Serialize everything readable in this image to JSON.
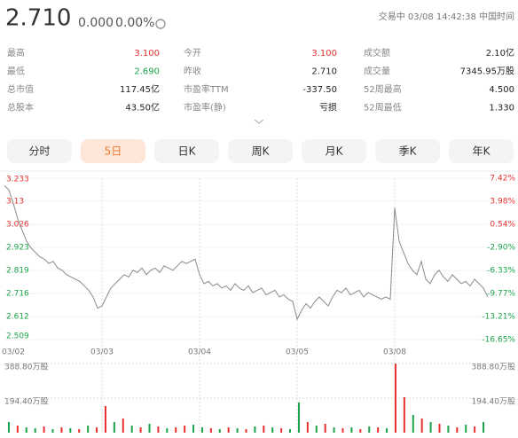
{
  "header": {
    "price": "2.710",
    "change": "0.000",
    "change_pct": "0.00%",
    "status": "交易中 03/08 14:42:38 中国时间"
  },
  "stats": [
    [
      {
        "label": "最高",
        "value": "3.100",
        "color": "#e93030"
      },
      {
        "label": "今开",
        "value": "3.100",
        "color": "#e93030"
      },
      {
        "label": "成交额",
        "value": "2.10亿",
        "color": "#222"
      }
    ],
    [
      {
        "label": "最低",
        "value": "2.690",
        "color": "#1aa34a"
      },
      {
        "label": "昨收",
        "value": "2.710",
        "color": "#222"
      },
      {
        "label": "成交量",
        "value": "7345.95万股",
        "color": "#222"
      }
    ],
    [
      {
        "label": "总市值",
        "value": "117.45亿",
        "color": "#222"
      },
      {
        "label": "市盈率TTM",
        "value": "-337.50",
        "color": "#222"
      },
      {
        "label": "52周最高",
        "value": "4.500",
        "color": "#222"
      }
    ],
    [
      {
        "label": "总股本",
        "value": "43.50亿",
        "color": "#222"
      },
      {
        "label": "市盈率(静)",
        "value": "亏损",
        "color": "#222"
      },
      {
        "label": "52周最低",
        "value": "1.330",
        "color": "#222"
      }
    ]
  ],
  "tabs": [
    "分时",
    "5日",
    "日K",
    "周K",
    "月K",
    "季K",
    "年K"
  ],
  "selected_tab": 1,
  "chart_data": {
    "type": "line",
    "days": [
      "03/02",
      "03/03",
      "03/04",
      "03/05",
      "03/08"
    ],
    "ylim": [
      2.509,
      3.233
    ],
    "yticks": [
      3.233,
      3.13,
      {
        "value": 3.026,
        "label": "3.026"
      },
      2.923,
      2.819,
      2.716,
      2.612,
      2.509
    ],
    "y2lim": [
      -16.65,
      7.42
    ],
    "y2ticks": [
      {
        "value": 7.42,
        "label": "7.42%"
      },
      {
        "value": 3.98,
        "label": "3.98%"
      },
      {
        "value": 0.54,
        "label": "0.54%"
      },
      {
        "value": -2.9,
        "label": "-2.90%"
      },
      {
        "value": -6.33,
        "label": "-6.33%"
      },
      {
        "value": -9.77,
        "label": "-9.77%"
      },
      {
        "value": -13.21,
        "label": "-13.21%"
      },
      {
        "value": -16.65,
        "label": "-16.65%"
      }
    ],
    "up_color": "#e93030",
    "down_color": "#1aa34a",
    "series": [
      {
        "color": "#8a8a8a",
        "values": [
          3.2,
          3.18,
          3.12,
          3.05,
          3.0,
          2.95,
          2.92,
          2.9,
          2.88,
          2.87,
          2.85,
          2.86,
          2.83,
          2.82,
          2.8,
          2.79,
          2.78,
          2.77,
          2.75,
          2.73,
          2.7,
          2.65,
          2.66,
          2.7,
          2.74,
          2.76,
          2.78,
          2.8,
          2.79,
          2.82,
          2.81,
          2.83,
          2.8,
          2.82,
          2.83,
          2.81,
          2.84,
          2.83,
          2.82,
          2.84,
          2.86,
          2.85,
          2.86,
          2.87,
          2.8,
          2.76,
          2.77,
          2.75,
          2.76,
          2.74,
          2.75,
          2.73,
          2.76,
          2.74,
          2.73,
          2.75,
          2.72,
          2.73,
          2.74,
          2.71,
          2.72,
          2.73,
          2.7,
          2.71,
          2.69,
          2.68,
          2.6,
          2.64,
          2.67,
          2.65,
          2.68,
          2.7,
          2.68,
          2.66,
          2.7,
          2.73,
          2.72,
          2.74,
          2.71,
          2.72,
          2.73,
          2.7,
          2.72,
          2.71,
          2.7,
          2.69,
          2.7,
          2.69,
          3.1,
          2.95,
          2.9,
          2.85,
          2.82,
          2.8,
          2.86,
          2.78,
          2.76,
          2.8,
          2.82,
          2.79,
          2.77,
          2.8,
          2.78,
          2.76,
          2.77,
          2.75,
          2.78,
          2.76,
          2.74,
          2.7
        ]
      }
    ],
    "volume": {
      "ylim": [
        0,
        388.8
      ],
      "yticks": [
        {
          "value": 388.8,
          "label": "388.80万股"
        },
        {
          "value": 194.4,
          "label": "194.40万股"
        }
      ],
      "values": [
        60,
        40,
        30,
        25,
        35,
        20,
        30,
        25,
        20,
        40,
        30,
        150,
        60,
        80,
        40,
        30,
        50,
        35,
        25,
        30,
        40,
        45,
        30,
        25,
        20,
        30,
        25,
        20,
        35,
        40,
        30,
        25,
        20,
        170,
        60,
        40,
        50,
        30,
        25,
        30,
        20,
        35,
        30,
        25,
        388,
        200,
        100,
        80,
        60,
        50,
        40,
        30,
        45,
        35,
        60
      ],
      "colors": [
        "#1aa34a",
        "#e93030",
        "#1aa34a",
        "#1aa34a",
        "#e93030",
        "#1aa34a",
        "#e93030",
        "#1aa34a",
        "#e93030",
        "#1aa34a",
        "#e93030",
        "#e93030",
        "#1aa34a",
        "#e93030",
        "#1aa34a",
        "#e93030",
        "#1aa34a",
        "#e93030",
        "#1aa34a",
        "#e93030",
        "#e93030",
        "#1aa34a",
        "#1aa34a",
        "#e93030",
        "#1aa34a",
        "#e93030",
        "#1aa34a",
        "#e93030",
        "#1aa34a",
        "#e93030",
        "#1aa34a",
        "#e93030",
        "#1aa34a",
        "#1aa34a",
        "#e93030",
        "#1aa34a",
        "#e93030",
        "#1aa34a",
        "#e93030",
        "#1aa34a",
        "#e93030",
        "#1aa34a",
        "#e93030",
        "#1aa34a",
        "#e93030",
        "#e93030",
        "#1aa34a",
        "#e93030",
        "#1aa34a",
        "#e93030",
        "#1aa34a",
        "#e93030",
        "#1aa34a",
        "#e93030",
        "#1aa34a"
      ]
    }
  }
}
